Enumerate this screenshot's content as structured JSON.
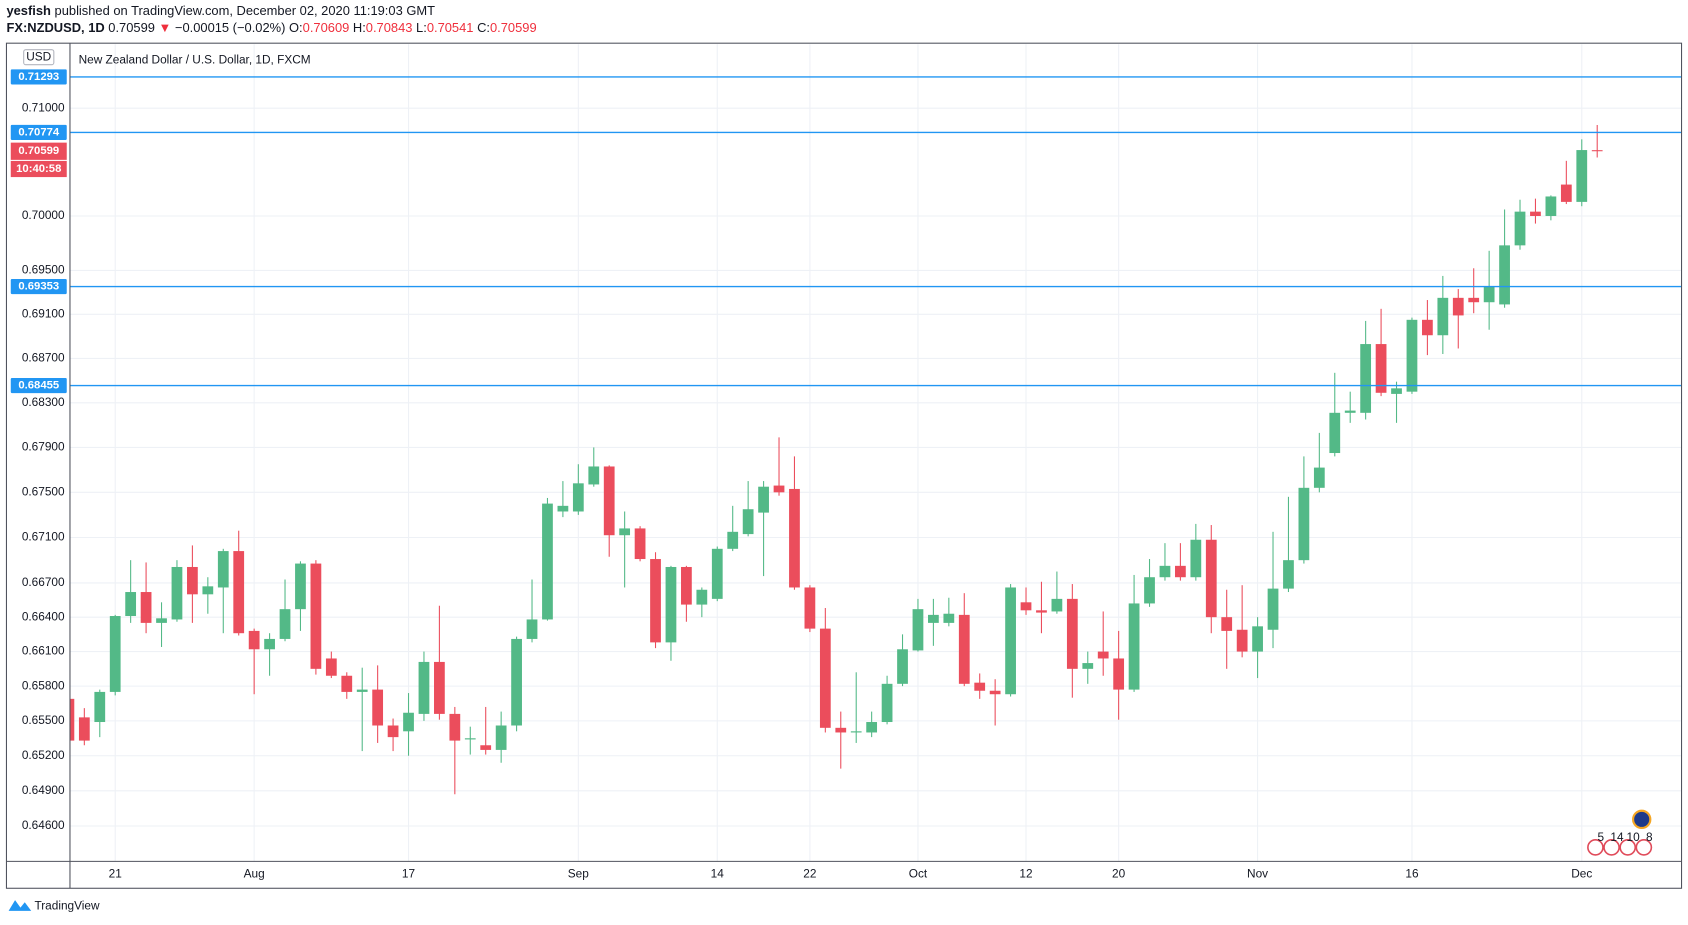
{
  "header": {
    "author": "yesfish",
    "published": "published on TradingView.com, December 02, 2020 11:19:03 GMT",
    "symbol": "FX:NZDUSD, 1D",
    "last": "0.70599",
    "arrow": "▼",
    "change": "−0.00015 (−0.02%)",
    "ohlc": [
      {
        "label": "O:",
        "value": "0.70609"
      },
      {
        "label": "H:",
        "value": "0.70843"
      },
      {
        "label": "L:",
        "value": "0.70541"
      },
      {
        "label": "C:",
        "value": "0.70599"
      }
    ]
  },
  "footer": {
    "brand": "TradingView"
  },
  "chart_data": {
    "type": "candlestick",
    "title": "New Zealand Dollar / U.S. Dollar, 1D, FXCM",
    "currency": "USD",
    "countdown": "10:40:58",
    "log": true,
    "grid": true,
    "up_color": "#53b987",
    "down_color": "#eb4d5c",
    "line_color": "#2196f3",
    "ylim": [
      0.643,
      0.716
    ],
    "yticks": [
      {
        "value": 0.71,
        "label": "0.71000"
      },
      {
        "value": 0.7,
        "label": "0.70000"
      },
      {
        "value": 0.695,
        "label": "0.69500"
      },
      {
        "value": 0.691,
        "label": "0.69100"
      },
      {
        "value": 0.687,
        "label": "0.68700"
      },
      {
        "value": 0.683,
        "label": "0.68300"
      },
      {
        "value": 0.679,
        "label": "0.67900"
      },
      {
        "value": 0.675,
        "label": "0.67500"
      },
      {
        "value": 0.671,
        "label": "0.67100"
      },
      {
        "value": 0.667,
        "label": "0.66700"
      },
      {
        "value": 0.664,
        "label": "0.66400"
      },
      {
        "value": 0.661,
        "label": "0.66100"
      },
      {
        "value": 0.658,
        "label": "0.65800"
      },
      {
        "value": 0.655,
        "label": "0.65500"
      },
      {
        "value": 0.652,
        "label": "0.65200"
      },
      {
        "value": 0.649,
        "label": "0.64900"
      },
      {
        "value": 0.646,
        "label": "0.64600"
      }
    ],
    "hlines": [
      0.71293,
      0.70774,
      0.69353,
      0.68455
    ],
    "events": [
      5,
      14,
      10,
      8
    ],
    "categories": [
      null,
      null,
      null,
      "21",
      null,
      null,
      null,
      null,
      null,
      null,
      null,
      null,
      "Aug",
      null,
      null,
      null,
      null,
      null,
      null,
      null,
      null,
      null,
      "17",
      null,
      null,
      null,
      null,
      null,
      null,
      null,
      null,
      null,
      null,
      "Sep",
      null,
      null,
      null,
      null,
      null,
      null,
      null,
      null,
      "14",
      null,
      null,
      null,
      null,
      null,
      "22",
      null,
      null,
      null,
      null,
      null,
      null,
      "Oct",
      null,
      null,
      null,
      null,
      null,
      null,
      "12",
      null,
      null,
      null,
      null,
      null,
      "20",
      null,
      null,
      null,
      null,
      null,
      null,
      null,
      null,
      "Nov",
      null,
      null,
      null,
      null,
      null,
      null,
      null,
      null,
      null,
      "16",
      null,
      null,
      null,
      null,
      null,
      null,
      null,
      null,
      null,
      null,
      "Dec",
      null
    ],
    "open": [
      0.6569,
      0.6553,
      0.6549,
      0.6575,
      0.6641,
      0.6662,
      0.6635,
      0.6638,
      0.6684,
      0.666,
      0.6666,
      0.6698,
      0.6628,
      0.6612,
      0.6621,
      0.6647,
      0.6687,
      0.6604,
      0.6589,
      0.6575,
      0.6577,
      0.6546,
      0.6541,
      0.6556,
      0.6601,
      0.6556,
      0.6534,
      0.6529,
      0.6525,
      0.6546,
      0.6621,
      0.6638,
      0.6733,
      0.6733,
      0.6757,
      0.6773,
      0.6712,
      0.6718,
      0.6691,
      0.6618,
      0.6684,
      0.6651,
      0.6656,
      0.67,
      0.6713,
      0.6732,
      0.6756,
      0.6753,
      0.6666,
      0.663,
      0.6544,
      0.654,
      0.654,
      0.6549,
      0.6582,
      0.6611,
      0.6635,
      0.6635,
      0.6642,
      0.6583,
      0.6576,
      0.6573,
      0.6653,
      0.6646,
      0.6645,
      0.6656,
      0.6595,
      0.661,
      0.6604,
      0.6577,
      0.6652,
      0.6675,
      0.6685,
      0.6675,
      0.6708,
      0.664,
      0.6629,
      0.661,
      0.6629,
      0.6665,
      0.669,
      0.6754,
      0.6785,
      0.6821,
      0.6821,
      0.6883,
      0.6838,
      0.684,
      0.6905,
      0.6891,
      0.6925,
      0.6925,
      0.6921,
      0.6919,
      0.6973,
      0.7004,
      0.7,
      0.7029,
      0.7013,
      0.70609
    ],
    "high": [
      0.6573,
      0.6561,
      0.6577,
      0.6642,
      0.669,
      0.6688,
      0.6653,
      0.669,
      0.6703,
      0.6675,
      0.67,
      0.6716,
      0.663,
      0.6626,
      0.6673,
      0.6689,
      0.669,
      0.661,
      0.6592,
      0.6596,
      0.6598,
      0.6552,
      0.6574,
      0.661,
      0.665,
      0.6562,
      0.6545,
      0.6562,
      0.6558,
      0.6623,
      0.6673,
      0.6745,
      0.676,
      0.6775,
      0.679,
      0.6774,
      0.6733,
      0.672,
      0.6697,
      0.6685,
      0.6685,
      0.6666,
      0.6702,
      0.6738,
      0.676,
      0.676,
      0.6799,
      0.6782,
      0.6668,
      0.6648,
      0.6558,
      0.6592,
      0.6558,
      0.6589,
      0.6625,
      0.6656,
      0.6656,
      0.6657,
      0.6661,
      0.6591,
      0.6586,
      0.6669,
      0.6666,
      0.6671,
      0.668,
      0.6669,
      0.661,
      0.6645,
      0.6628,
      0.6677,
      0.6691,
      0.6705,
      0.6705,
      0.6722,
      0.6721,
      0.6664,
      0.6668,
      0.664,
      0.6715,
      0.6746,
      0.6782,
      0.6803,
      0.6857,
      0.684,
      0.6904,
      0.6915,
      0.6849,
      0.6907,
      0.6923,
      0.6945,
      0.6933,
      0.6952,
      0.6968,
      0.7006,
      0.7015,
      0.7016,
      0.7019,
      0.7051,
      0.7071,
      0.70843
    ],
    "low": [
      0.6531,
      0.6529,
      0.6536,
      0.6572,
      0.6635,
      0.6626,
      0.6614,
      0.6636,
      0.6635,
      0.6643,
      0.6626,
      0.6624,
      0.6573,
      0.6589,
      0.6619,
      0.6628,
      0.659,
      0.6587,
      0.6569,
      0.6524,
      0.6531,
      0.6524,
      0.652,
      0.655,
      0.6551,
      0.6487,
      0.6521,
      0.6521,
      0.6514,
      0.6541,
      0.6618,
      0.6637,
      0.6728,
      0.673,
      0.6755,
      0.6693,
      0.6666,
      0.6689,
      0.6613,
      0.6602,
      0.6636,
      0.664,
      0.6654,
      0.6698,
      0.6711,
      0.6676,
      0.6747,
      0.6664,
      0.6627,
      0.654,
      0.6509,
      0.6531,
      0.6536,
      0.6547,
      0.658,
      0.661,
      0.6615,
      0.6632,
      0.658,
      0.6569,
      0.6546,
      0.6571,
      0.6642,
      0.6626,
      0.6643,
      0.657,
      0.6582,
      0.6589,
      0.6551,
      0.6575,
      0.6649,
      0.6672,
      0.6672,
      0.6672,
      0.6626,
      0.6595,
      0.6605,
      0.6587,
      0.6613,
      0.6662,
      0.6687,
      0.675,
      0.6782,
      0.6812,
      0.6815,
      0.6836,
      0.6812,
      0.6838,
      0.6873,
      0.6874,
      0.6879,
      0.6911,
      0.6896,
      0.6916,
      0.6969,
      0.6993,
      0.6996,
      0.7011,
      0.7009,
      0.70541
    ],
    "close": [
      0.6533,
      0.6533,
      0.6575,
      0.6641,
      0.6662,
      0.6635,
      0.6639,
      0.6684,
      0.666,
      0.6667,
      0.6698,
      0.6626,
      0.6612,
      0.6621,
      0.6647,
      0.6687,
      0.6595,
      0.6589,
      0.6575,
      0.6577,
      0.6546,
      0.6536,
      0.6557,
      0.6601,
      0.6556,
      0.6533,
      0.6535,
      0.6525,
      0.6546,
      0.6621,
      0.6638,
      0.674,
      0.6738,
      0.6758,
      0.6773,
      0.6712,
      0.6718,
      0.6691,
      0.6618,
      0.6684,
      0.6651,
      0.6664,
      0.67,
      0.6715,
      0.6735,
      0.6755,
      0.675,
      0.6666,
      0.663,
      0.6544,
      0.654,
      0.6541,
      0.6549,
      0.6582,
      0.6612,
      0.6647,
      0.6642,
      0.6643,
      0.6582,
      0.6576,
      0.6573,
      0.6666,
      0.6646,
      0.6644,
      0.6656,
      0.6595,
      0.66,
      0.6604,
      0.6577,
      0.6652,
      0.6675,
      0.6685,
      0.6675,
      0.6708,
      0.664,
      0.6628,
      0.661,
      0.6632,
      0.6665,
      0.669,
      0.6754,
      0.6772,
      0.6821,
      0.6823,
      0.6883,
      0.6839,
      0.6843,
      0.6905,
      0.6891,
      0.6925,
      0.6909,
      0.6921,
      0.6935,
      0.6973,
      0.7004,
      0.7,
      0.7018,
      0.7013,
      0.7061,
      0.70599
    ]
  }
}
